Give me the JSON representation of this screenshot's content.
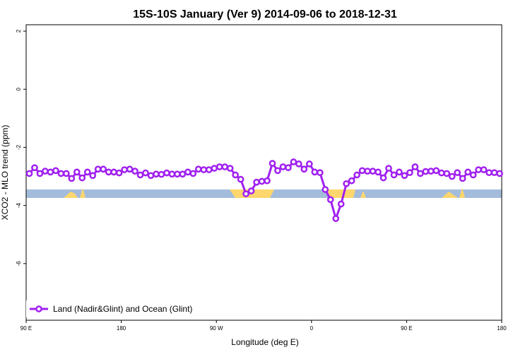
{
  "chart_data": {
    "type": "line",
    "title": "15S-10S January (Ver 9)   2014-09-06 to 2018-12-31",
    "x_label": "Longitude (deg E)",
    "y_label": "XCO2 - MLO trend (ppm)",
    "x": [
      93,
      98,
      103,
      108,
      113,
      118,
      123,
      128,
      133,
      138,
      143,
      148,
      153,
      158,
      163,
      168,
      173,
      178,
      183,
      188,
      193,
      198,
      203,
      208,
      213,
      218,
      223,
      228,
      233,
      238,
      243,
      248,
      253,
      258,
      263,
      268,
      273,
      278,
      283,
      288,
      293,
      298,
      303,
      308,
      313,
      318,
      323,
      328,
      333,
      338,
      343,
      348,
      353,
      358,
      363,
      368,
      373,
      378,
      383,
      388,
      393,
      398,
      403,
      408,
      413,
      418,
      423,
      428,
      433,
      438,
      443,
      448,
      453,
      458,
      463,
      468,
      473,
      478,
      483,
      488,
      493,
      498,
      503,
      508,
      513,
      518,
      523,
      528,
      533,
      538
    ],
    "series": [
      {
        "name": "Land (Nadir&Glint) and Ocean (Glint)",
        "color": "#a020f0",
        "values": [
          -2.9,
          -2.7,
          -2.9,
          -2.82,
          -2.85,
          -2.8,
          -2.9,
          -2.9,
          -3.07,
          -2.85,
          -3.05,
          -2.85,
          -2.97,
          -2.75,
          -2.75,
          -2.85,
          -2.85,
          -2.88,
          -2.77,
          -2.75,
          -2.82,
          -2.95,
          -2.88,
          -2.97,
          -2.92,
          -2.93,
          -2.88,
          -2.92,
          -2.92,
          -2.92,
          -2.85,
          -2.9,
          -2.75,
          -2.77,
          -2.77,
          -2.72,
          -2.67,
          -2.67,
          -2.72,
          -2.95,
          -3.1,
          -3.6,
          -3.5,
          -3.2,
          -3.17,
          -3.15,
          -2.55,
          -2.8,
          -2.67,
          -2.7,
          -2.5,
          -2.57,
          -2.75,
          -2.57,
          -2.85,
          -2.87,
          -3.45,
          -3.8,
          -4.45,
          -3.95,
          -3.25,
          -3.15,
          -2.95,
          -2.8,
          -2.82,
          -2.82,
          -2.85,
          -3.05,
          -2.72,
          -2.95,
          -2.85,
          -2.97,
          -2.87,
          -2.67,
          -2.9,
          -2.83,
          -2.82,
          -2.8,
          -2.88,
          -2.9,
          -3.0,
          -2.87,
          -3.07,
          -2.85,
          -2.95,
          -2.77,
          -2.77,
          -2.87,
          -2.87,
          -2.9
        ]
      }
    ],
    "xlim": [
      90,
      540
    ],
    "xticks": [
      {
        "value": 90,
        "label": "90 E"
      },
      180,
      {
        "value": 270,
        "label": "90 W"
      },
      {
        "value": 360,
        "label": "0"
      },
      {
        "value": 450,
        "label": "90 E"
      },
      {
        "value": 540,
        "label": "180"
      }
    ],
    "ylim": [
      -7.95,
      2.22
    ],
    "yticks": [
      2,
      0,
      -2,
      -4,
      -6
    ],
    "legend": "bottom-left"
  }
}
